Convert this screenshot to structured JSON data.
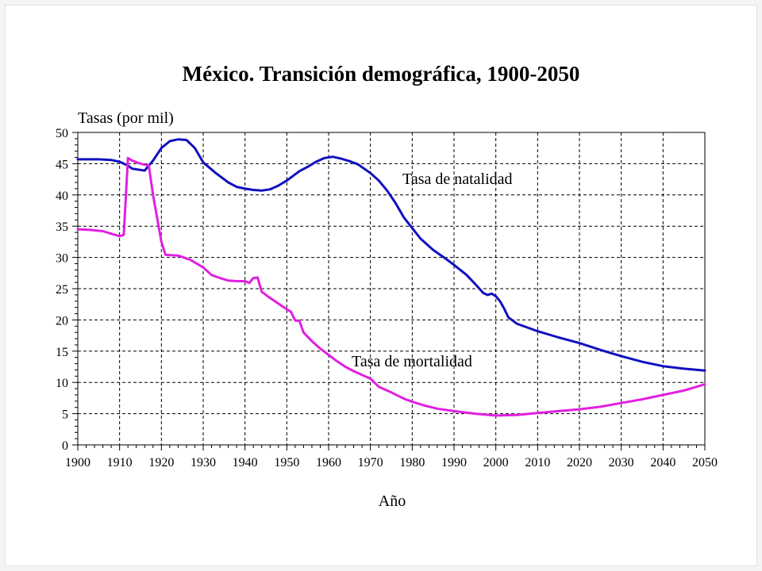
{
  "chart_data": {
    "type": "line",
    "title": "México. Transición demográfica, 1900-2050",
    "ylabel": "Tasas (por mil)",
    "xlabel": "Año",
    "xlim": [
      1900,
      2050
    ],
    "ylim": [
      0,
      50
    ],
    "x_ticks": [
      1900,
      1910,
      1920,
      1930,
      1940,
      1950,
      1960,
      1970,
      1980,
      1990,
      2000,
      2010,
      2020,
      2030,
      2040,
      2050
    ],
    "y_ticks": [
      0,
      5,
      10,
      15,
      20,
      25,
      30,
      35,
      40,
      45,
      50
    ],
    "grid": true,
    "grid_style": "dashed",
    "series": [
      {
        "name": "Tasa de natalidad",
        "color": "#1010c0",
        "points": [
          [
            1900,
            45.7
          ],
          [
            1905,
            45.7
          ],
          [
            1908,
            45.6
          ],
          [
            1910,
            45.3
          ],
          [
            1912,
            44.7
          ],
          [
            1913,
            44.2
          ],
          [
            1915,
            44.0
          ],
          [
            1916,
            43.9
          ],
          [
            1917,
            44.7
          ],
          [
            1918,
            45.5
          ],
          [
            1920,
            47.5
          ],
          [
            1922,
            48.6
          ],
          [
            1924,
            48.9
          ],
          [
            1926,
            48.8
          ],
          [
            1928,
            47.5
          ],
          [
            1930,
            45.2
          ],
          [
            1933,
            43.5
          ],
          [
            1936,
            42.0
          ],
          [
            1938,
            41.3
          ],
          [
            1940,
            41.0
          ],
          [
            1942,
            40.8
          ],
          [
            1944,
            40.7
          ],
          [
            1946,
            40.9
          ],
          [
            1948,
            41.5
          ],
          [
            1950,
            42.3
          ],
          [
            1953,
            43.8
          ],
          [
            1955,
            44.5
          ],
          [
            1957,
            45.3
          ],
          [
            1959,
            45.9
          ],
          [
            1961,
            46.1
          ],
          [
            1963,
            45.8
          ],
          [
            1965,
            45.4
          ],
          [
            1967,
            44.9
          ],
          [
            1970,
            43.5
          ],
          [
            1972,
            42.3
          ],
          [
            1974,
            40.7
          ],
          [
            1976,
            38.7
          ],
          [
            1978,
            36.4
          ],
          [
            1980,
            34.7
          ],
          [
            1982,
            33.0
          ],
          [
            1985,
            31.2
          ],
          [
            1988,
            29.8
          ],
          [
            1990,
            28.8
          ],
          [
            1993,
            27.2
          ],
          [
            1995,
            25.8
          ],
          [
            1997,
            24.3
          ],
          [
            1998,
            24.0
          ],
          [
            1999,
            24.2
          ],
          [
            2000,
            23.8
          ],
          [
            2001,
            23.0
          ],
          [
            2002,
            21.8
          ],
          [
            2003,
            20.4
          ],
          [
            2005,
            19.4
          ],
          [
            2010,
            18.2
          ],
          [
            2015,
            17.2
          ],
          [
            2020,
            16.3
          ],
          [
            2025,
            15.2
          ],
          [
            2030,
            14.2
          ],
          [
            2035,
            13.3
          ],
          [
            2040,
            12.6
          ],
          [
            2045,
            12.2
          ],
          [
            2050,
            11.9
          ]
        ]
      },
      {
        "name": "Tasa de mortalidad",
        "color": "#e020e0",
        "points": [
          [
            1900,
            34.5
          ],
          [
            1903,
            34.4
          ],
          [
            1906,
            34.2
          ],
          [
            1908,
            33.8
          ],
          [
            1910,
            33.4
          ],
          [
            1911,
            33.6
          ],
          [
            1912,
            45.9
          ],
          [
            1913,
            45.5
          ],
          [
            1915,
            45.0
          ],
          [
            1917,
            44.7
          ],
          [
            1918,
            40.0
          ],
          [
            1920,
            32.5
          ],
          [
            1921,
            30.4
          ],
          [
            1924,
            30.3
          ],
          [
            1927,
            29.6
          ],
          [
            1930,
            28.4
          ],
          [
            1932,
            27.2
          ],
          [
            1934,
            26.7
          ],
          [
            1936,
            26.3
          ],
          [
            1938,
            26.2
          ],
          [
            1940,
            26.2
          ],
          [
            1941,
            25.9
          ],
          [
            1942,
            26.7
          ],
          [
            1943,
            26.8
          ],
          [
            1944,
            24.5
          ],
          [
            1946,
            23.5
          ],
          [
            1948,
            22.6
          ],
          [
            1950,
            21.7
          ],
          [
            1951,
            21.3
          ],
          [
            1952,
            19.9
          ],
          [
            1953,
            19.9
          ],
          [
            1954,
            18.0
          ],
          [
            1956,
            16.6
          ],
          [
            1958,
            15.4
          ],
          [
            1960,
            14.4
          ],
          [
            1962,
            13.4
          ],
          [
            1964,
            12.5
          ],
          [
            1966,
            11.8
          ],
          [
            1968,
            11.2
          ],
          [
            1970,
            10.6
          ],
          [
            1972,
            9.3
          ],
          [
            1975,
            8.4
          ],
          [
            1978,
            7.4
          ],
          [
            1980,
            6.9
          ],
          [
            1983,
            6.3
          ],
          [
            1986,
            5.8
          ],
          [
            1990,
            5.4
          ],
          [
            1995,
            5.0
          ],
          [
            2000,
            4.7
          ],
          [
            2005,
            4.8
          ],
          [
            2010,
            5.1
          ],
          [
            2015,
            5.4
          ],
          [
            2020,
            5.7
          ],
          [
            2025,
            6.1
          ],
          [
            2030,
            6.7
          ],
          [
            2035,
            7.3
          ],
          [
            2040,
            8.0
          ],
          [
            2045,
            8.7
          ],
          [
            2050,
            9.7
          ]
        ]
      }
    ],
    "annotations": [
      "Tasa de natalidad",
      "Tasa de mortalidad"
    ]
  }
}
